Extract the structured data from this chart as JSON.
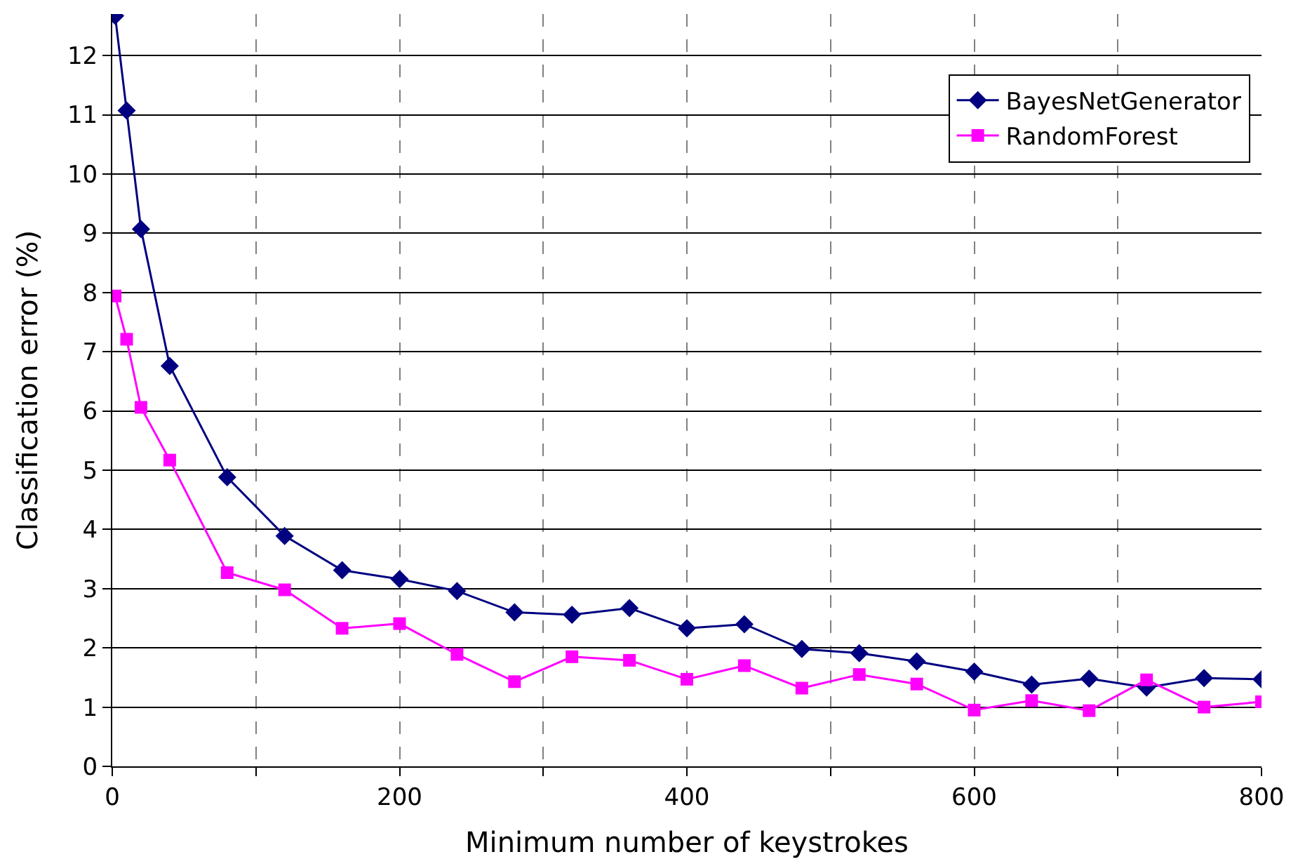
{
  "chart_data": {
    "type": "line",
    "xlabel": "Minimum number of keystrokes",
    "ylabel": "Classification error (%)",
    "x": [
      2,
      10,
      20,
      40,
      80,
      120,
      160,
      200,
      240,
      280,
      320,
      360,
      400,
      440,
      480,
      520,
      560,
      600,
      640,
      680,
      720,
      760,
      800
    ],
    "series": [
      {
        "name": "BayesNetGenerator",
        "color": "#000080",
        "marker": "diamond",
        "values": [
          12.67,
          11.07,
          9.07,
          6.76,
          4.88,
          3.89,
          3.31,
          3.16,
          2.96,
          2.6,
          2.56,
          2.67,
          2.33,
          2.4,
          1.98,
          1.91,
          1.77,
          1.6,
          1.38,
          1.48,
          1.33,
          1.49,
          1.47
        ]
      },
      {
        "name": "RandomForest",
        "color": "#ff00ff",
        "marker": "square",
        "values": [
          7.94,
          7.21,
          6.06,
          5.17,
          3.27,
          2.98,
          2.33,
          2.41,
          1.89,
          1.43,
          1.85,
          1.79,
          1.47,
          1.7,
          1.32,
          1.55,
          1.39,
          0.95,
          1.11,
          0.94,
          1.46,
          1.0,
          1.09
        ]
      }
    ],
    "xlim": [
      0,
      800
    ],
    "ylim": [
      0,
      12.7
    ],
    "xticks": [
      0,
      {
        "value": 100,
        "label": null
      },
      200,
      {
        "value": 300,
        "label": null
      },
      400,
      {
        "value": 500,
        "label": null
      },
      600,
      {
        "value": 700,
        "label": null
      },
      800
    ],
    "yticks": [
      0,
      1,
      2,
      3,
      4,
      5,
      6,
      7,
      8,
      9,
      10,
      11,
      12
    ],
    "grid": true,
    "legend": "top right",
    "line_style": "solid"
  }
}
